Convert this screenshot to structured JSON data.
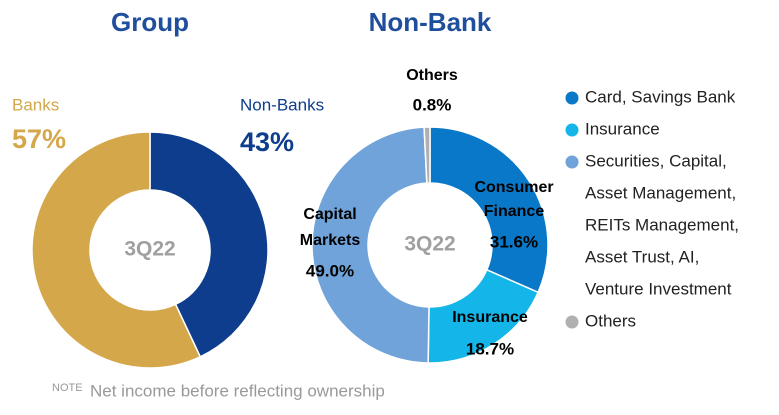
{
  "chart_data": [
    {
      "type": "donut",
      "title": "Group",
      "center_label": "3Q22",
      "categories": [
        "Banks",
        "Non-Banks"
      ],
      "values": [
        57,
        43
      ],
      "value_labels": [
        "57%",
        "43%"
      ],
      "colors": [
        "#d4a74a",
        "#0d3d8c"
      ]
    },
    {
      "type": "donut",
      "title": "Non-Bank",
      "center_label": "3Q22",
      "categories": [
        "Consumer Finance",
        "Insurance",
        "Capital Markets",
        "Others"
      ],
      "values": [
        31.6,
        18.7,
        49.0,
        0.8
      ],
      "value_labels": [
        "31.6%",
        "18.7%",
        "49.0%",
        "0.8%"
      ],
      "colors": [
        "#0a78c8",
        "#14b5e8",
        "#6fa3da",
        "#b0b0b0"
      ],
      "legend": [
        [
          "Card, Savings Bank"
        ],
        [
          "Insurance"
        ],
        [
          "Securities, Capital,",
          "Asset Management,",
          "REITs Management,",
          "Asset Trust, AI,",
          "Venture Investment"
        ],
        [
          "Others"
        ]
      ]
    }
  ],
  "note": {
    "tag": "NOTE",
    "text": "Net income before reflecting ownership"
  }
}
